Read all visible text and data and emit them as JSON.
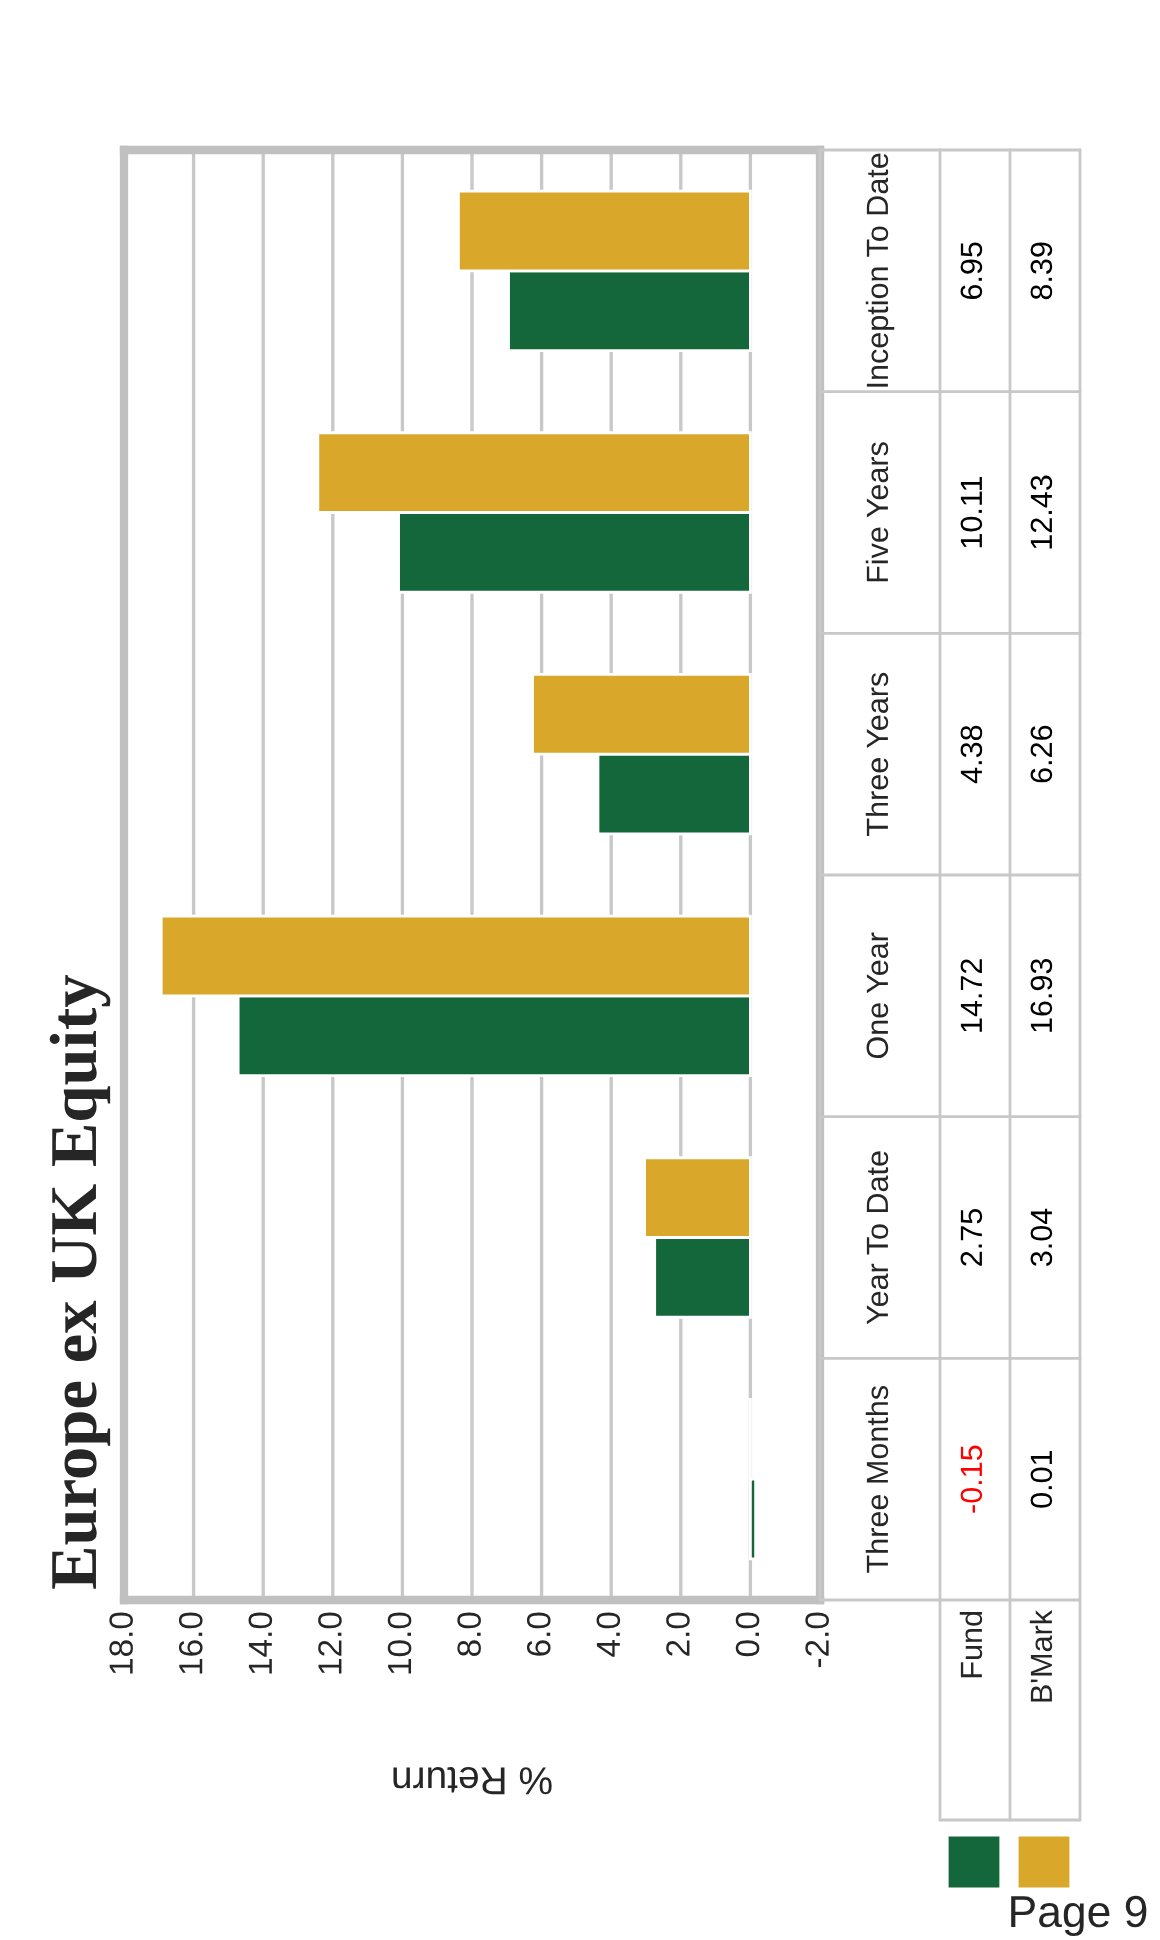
{
  "chart_data": {
    "type": "bar",
    "orientation": "horizontal",
    "title": "Europe ex UK Equity",
    "xlabel": "% Return",
    "categories": [
      "Inception To Date",
      "Five Years",
      "Three Years",
      "One Year",
      "Year To Date",
      "Three Months"
    ],
    "series": [
      {
        "name": "Fund",
        "color": "#13673a",
        "values": [
          6.95,
          10.11,
          4.38,
          14.72,
          2.75,
          -0.15
        ]
      },
      {
        "name": "B'Mark",
        "color": "#d9a82b",
        "values": [
          8.39,
          12.43,
          6.26,
          16.93,
          3.04,
          0.01
        ]
      }
    ],
    "xlim": [
      18,
      -2
    ],
    "xticks": [
      {
        "value": 18,
        "label": "18.0"
      },
      {
        "value": 16,
        "label": "16.0"
      },
      {
        "value": 14,
        "label": "14.0"
      },
      {
        "value": 12,
        "label": "12.0"
      },
      {
        "value": 10,
        "label": "10.0"
      },
      {
        "value": 8,
        "label": "8.0"
      },
      {
        "value": 6,
        "label": "6.0"
      },
      {
        "value": 4,
        "label": "4.0"
      },
      {
        "value": 2,
        "label": "2.0"
      },
      {
        "value": 0,
        "label": "0.0"
      },
      {
        "value": -2,
        "label": "-2.0"
      }
    ],
    "grid": "x",
    "legend": "bottom",
    "data_labels": true,
    "annotations": [
      "Page 9"
    ]
  }
}
